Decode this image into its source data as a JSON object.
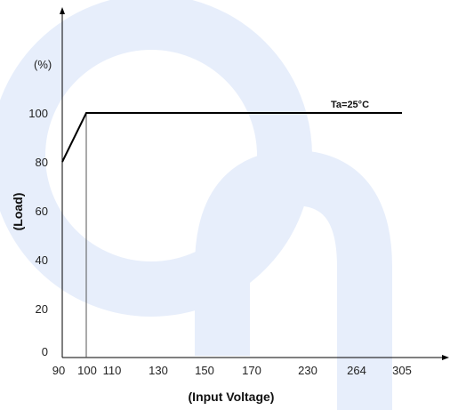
{
  "chart_data": {
    "type": "line",
    "xlabel": "(Input Voltage)",
    "ylabel": "(Load)",
    "y_unit": "(%)",
    "x_ticks": [
      "90",
      "100",
      "110",
      "130",
      "150",
      "170",
      "230",
      "264",
      "305"
    ],
    "y_ticks": [
      "0",
      "20",
      "40",
      "60",
      "80",
      "100"
    ],
    "ylim": [
      0,
      120
    ],
    "series": [
      {
        "name": "Ta=25°C",
        "points": [
          {
            "x": "90",
            "y": 80
          },
          {
            "x": "100",
            "y": 100
          },
          {
            "x": "305",
            "y": 100
          }
        ]
      }
    ],
    "annotation": "Ta=25°C",
    "reference_line_x": "100",
    "grid": false,
    "colors": {
      "line": "#000000",
      "axis": "#000000",
      "watermark": "#e7eefb"
    }
  }
}
